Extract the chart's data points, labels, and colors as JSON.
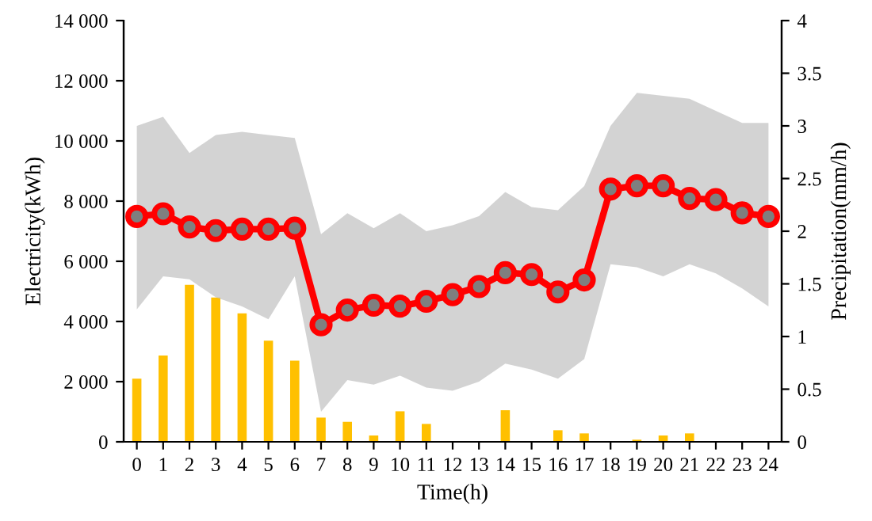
{
  "chart_data": {
    "type": "line",
    "xlabel": "Time(h)",
    "ylabel": "Electricity(kWh)",
    "y2label": "Precipitation(mm/h)",
    "x": [
      0,
      1,
      2,
      3,
      4,
      5,
      6,
      7,
      8,
      9,
      10,
      11,
      12,
      13,
      14,
      15,
      16,
      17,
      18,
      19,
      20,
      21,
      22,
      23,
      24
    ],
    "series": [
      {
        "type": "bar",
        "axis": "y2",
        "color": "#ffc000",
        "values": [
          0.6,
          0.82,
          1.49,
          1.37,
          1.22,
          0.96,
          0.77,
          0.23,
          0.19,
          0.06,
          0.29,
          0.17,
          0,
          0,
          0.3,
          0,
          0.11,
          0.08,
          0,
          0.02,
          0.06,
          0.08,
          0,
          0,
          0
        ]
      },
      {
        "color": "#ff0000",
        "marker": "circle",
        "values": [
          7490,
          7580,
          7140,
          7020,
          7070,
          7070,
          7100,
          3890,
          4380,
          4540,
          4510,
          4670,
          4890,
          5160,
          5620,
          5560,
          4980,
          5380,
          8400,
          8510,
          8510,
          8090,
          8050,
          7610,
          7490
        ],
        "lower": [
          4400,
          5500,
          5400,
          4800,
          4500,
          4070,
          5500,
          1000,
          2050,
          1900,
          2200,
          1800,
          1700,
          2000,
          2600,
          2400,
          2100,
          2750,
          5900,
          5800,
          5500,
          5900,
          5600,
          5100,
          4500
        ],
        "upper": [
          10500,
          10800,
          9600,
          10200,
          10300,
          10200,
          10100,
          6900,
          7600,
          7100,
          7600,
          7000,
          7200,
          7500,
          8300,
          7800,
          7700,
          8500,
          10500,
          11600,
          11500,
          11400,
          11000,
          10600,
          10600
        ]
      }
    ],
    "xlim": [
      -0.5,
      24.5
    ],
    "xticks": [
      0,
      1,
      2,
      3,
      4,
      5,
      6,
      7,
      8,
      9,
      10,
      11,
      12,
      13,
      14,
      15,
      16,
      17,
      18,
      19,
      20,
      21,
      22,
      23,
      24
    ],
    "ylim": [
      0,
      14000
    ],
    "yticks": [
      {
        "value": 0,
        "label": "0"
      },
      {
        "value": 2000,
        "label": "2 000"
      },
      {
        "value": 4000,
        "label": "4 000"
      },
      {
        "value": 6000,
        "label": "6 000"
      },
      {
        "value": 8000,
        "label": "8 000"
      },
      {
        "value": 10000,
        "label": "10 000"
      },
      {
        "value": 12000,
        "label": "12 000"
      },
      {
        "value": 14000,
        "label": "14 000"
      }
    ],
    "y2lim": [
      0,
      4
    ],
    "y2ticks": [
      0,
      0.5,
      1,
      1.5,
      2,
      2.5,
      3,
      3.5,
      4
    ],
    "grid": false,
    "legend": false
  }
}
